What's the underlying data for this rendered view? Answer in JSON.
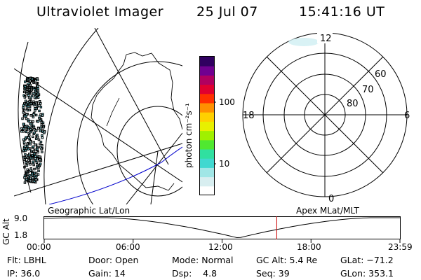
{
  "header": {
    "title": "Ultraviolet Imager",
    "date": "25 Jul 07",
    "time": "15:41:16 UT"
  },
  "colorbar": {
    "unit_label": "photon cm⁻²s⁻¹",
    "tick_labels": [
      "100",
      "10"
    ],
    "colors": [
      "#ffffff",
      "#d8eef0",
      "#a0e6e6",
      "#40d8d0",
      "#30e0a0",
      "#50e830",
      "#a0f000",
      "#e8f000",
      "#ffd000",
      "#ff9000",
      "#ff3000",
      "#e00030",
      "#b00060",
      "#700090",
      "#300060"
    ]
  },
  "polar_plot": {
    "mlt_labels": {
      "top": "12",
      "left": "18",
      "right": "6",
      "bottom": "0"
    },
    "lat_labels": [
      "60",
      "70",
      "80"
    ]
  },
  "timeline": {
    "left_title": "Geographic Lat/Lon",
    "right_title": "Apex MLat/MLT",
    "axis_label": "GC Alt",
    "y_ticks": [
      "9.0",
      "1.8"
    ],
    "x_ticks": [
      "00:00",
      "06:00",
      "12:00",
      "18:00",
      "23:59"
    ],
    "current_hour": 15.69
  },
  "info": {
    "flt": "Flt: LBHL",
    "ip": "IP: 36.0",
    "door": "Door: Open",
    "gain": "Gain: 14",
    "mode": "Mode: Normal",
    "dsp": "Dsp:    4.8",
    "gc_alt": "GC Alt: 5.4 Re",
    "seq": "Seq: 39",
    "glat": "GLat: −71.2",
    "glon": "GLon: 353.1"
  },
  "colors": {
    "foreground": "#000000",
    "orbit_track": "#0000cc",
    "time_marker": "#cc0000",
    "aurora": "#9ad8dc"
  }
}
